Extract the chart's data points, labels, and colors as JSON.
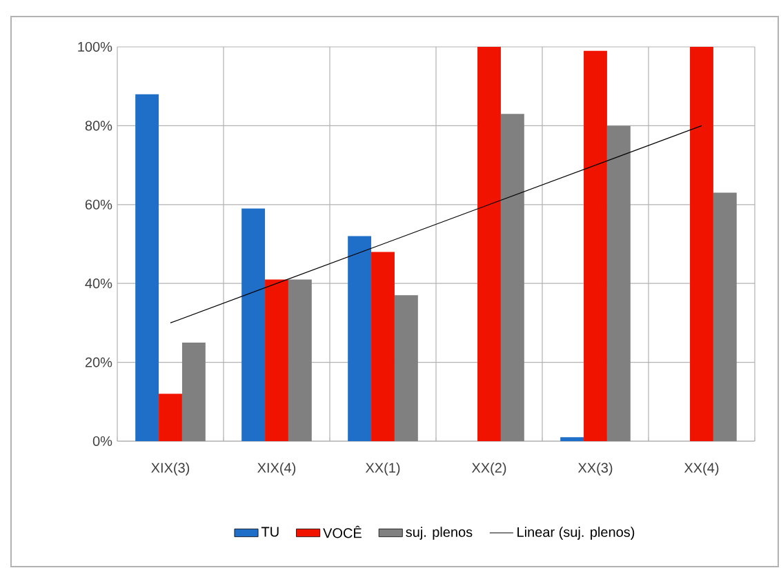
{
  "chart_data": {
    "type": "bar",
    "categories": [
      "XIX(3)",
      "XIX(4)",
      "XX(1)",
      "XX(2)",
      "XX(3)",
      "XX(4)"
    ],
    "series": [
      {
        "name": "TU",
        "color": "#1f6fc8",
        "values": [
          88,
          59,
          52,
          0,
          1,
          0
        ]
      },
      {
        "name": "VOCÊ",
        "color": "#f01400",
        "values": [
          12,
          41,
          48,
          100,
          99,
          100
        ]
      },
      {
        "name": "suj. plenos",
        "color": "#808080",
        "values": [
          25,
          41,
          37,
          83,
          80,
          63
        ]
      },
      {
        "name": "Linear (suj. plenos)",
        "type": "line",
        "color": "#000000",
        "values": [
          30,
          40,
          50,
          60,
          70,
          80
        ]
      }
    ],
    "ylim": [
      0,
      100
    ],
    "yticks": [
      {
        "value": 0,
        "label": "0%"
      },
      {
        "value": 20,
        "label": "20%"
      },
      {
        "value": 40,
        "label": "40%"
      },
      {
        "value": 60,
        "label": "60%"
      },
      {
        "value": 80,
        "label": "80%"
      },
      {
        "value": 100,
        "label": "100%"
      }
    ],
    "grid": true,
    "legend": "bottom"
  }
}
